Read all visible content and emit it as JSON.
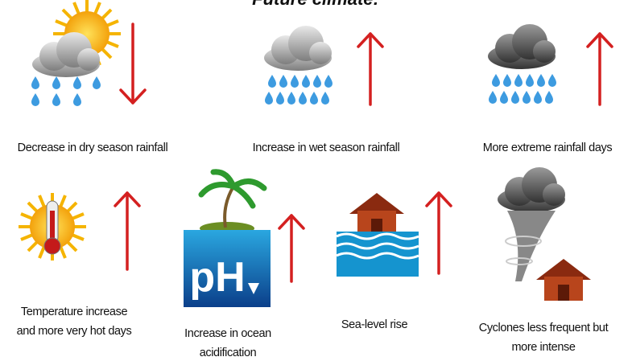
{
  "title": "Future climate:",
  "items": [
    {
      "label": [
        "Decrease in dry season rainfall"
      ]
    },
    {
      "label": [
        "Increase in wet season rainfall"
      ]
    },
    {
      "label": [
        "More extreme rainfall days"
      ]
    },
    {
      "label": [
        "Temperature increase",
        "and more very hot days"
      ]
    },
    {
      "label": [
        "Increase in ocean",
        "acidification"
      ]
    },
    {
      "label": [
        "Sea-level rise"
      ]
    },
    {
      "label": [
        "Cyclones less frequent but",
        "more intense"
      ]
    }
  ]
}
